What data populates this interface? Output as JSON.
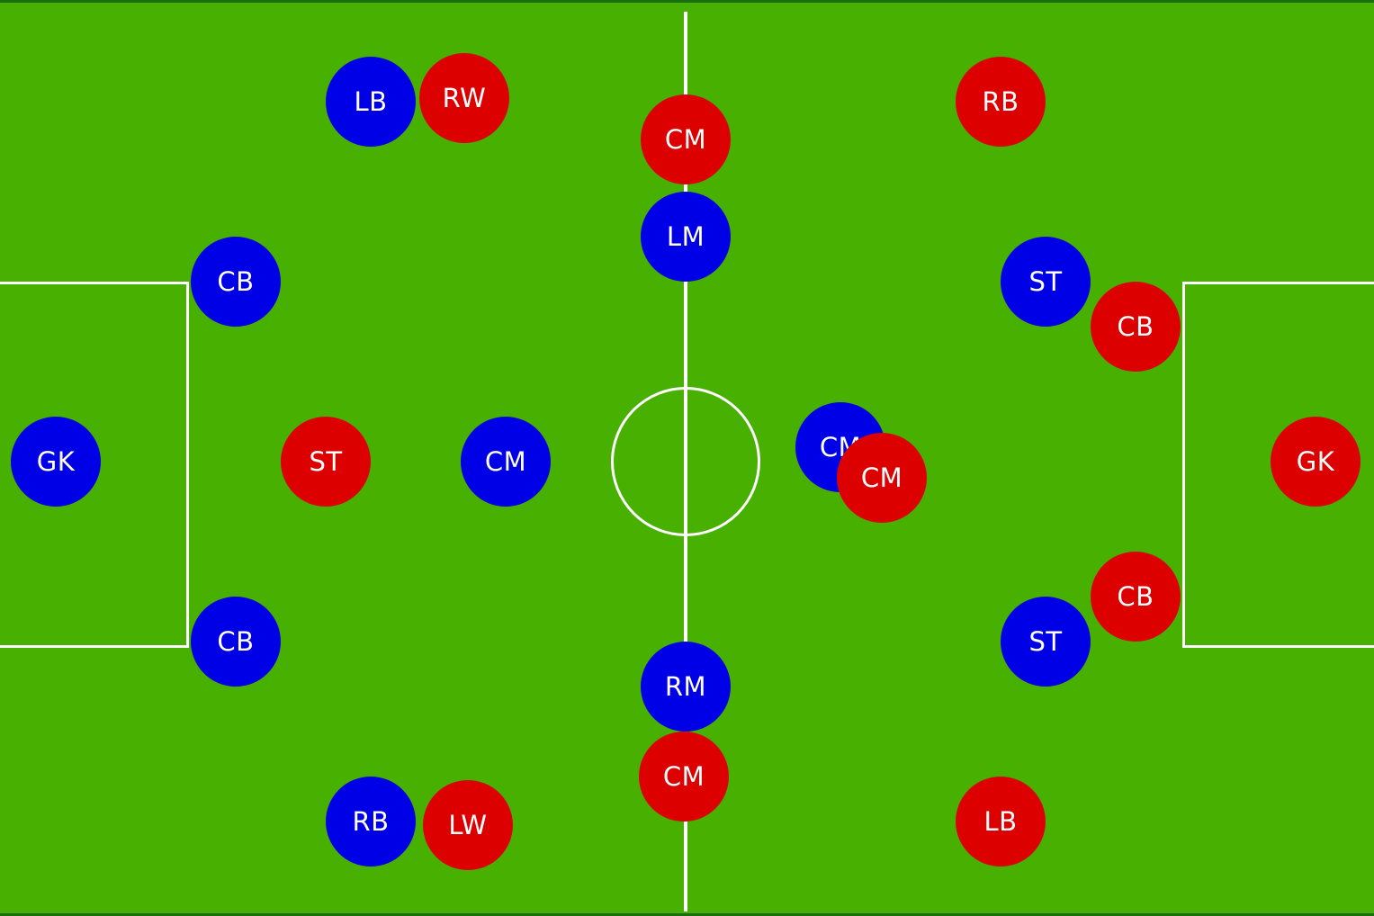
{
  "colors": {
    "pitch": "#47b000",
    "lines": "#ffffff",
    "team_blue": "#0000e6",
    "team_red": "#dc0000"
  },
  "team_blue": {
    "color": "#0000e6",
    "players": [
      {
        "label": "GK"
      },
      {
        "label": "CB"
      },
      {
        "label": "CB"
      },
      {
        "label": "LB"
      },
      {
        "label": "RB"
      },
      {
        "label": "CM"
      },
      {
        "label": "LM"
      },
      {
        "label": "RM"
      },
      {
        "label": "CM"
      },
      {
        "label": "ST"
      },
      {
        "label": "ST"
      }
    ]
  },
  "team_red": {
    "color": "#dc0000",
    "players": [
      {
        "label": "GK"
      },
      {
        "label": "CB"
      },
      {
        "label": "CB"
      },
      {
        "label": "RB"
      },
      {
        "label": "LB"
      },
      {
        "label": "CM"
      },
      {
        "label": "CM"
      },
      {
        "label": "CM"
      },
      {
        "label": "ST"
      },
      {
        "label": "RW"
      },
      {
        "label": "LW"
      }
    ]
  }
}
